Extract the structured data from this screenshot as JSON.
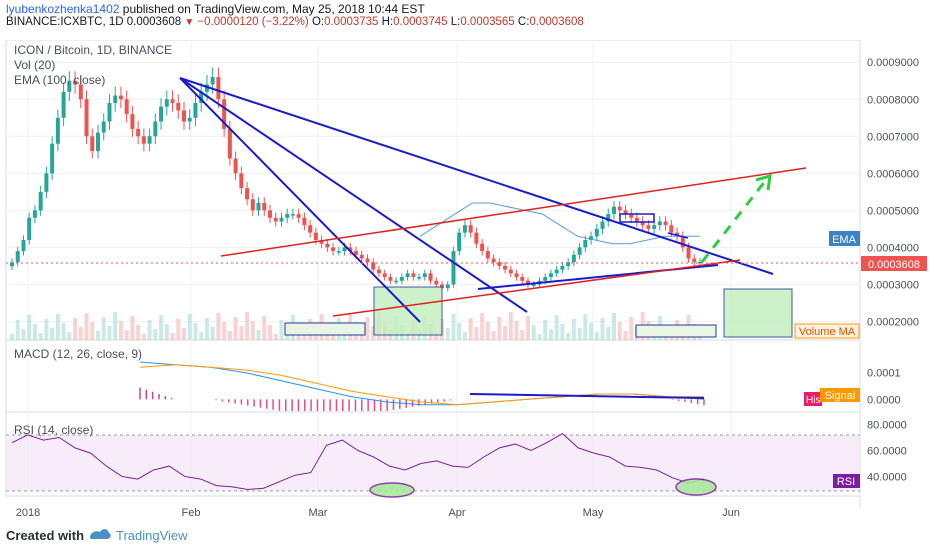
{
  "header": {
    "author": "lyubenkozhenka1402",
    "published_text": "published on TradingView.com, May 25, 2018 10:44 EST",
    "symbol": "BINANCE:ICXBTC, 1D",
    "last": "0.0003608",
    "change": "−0.0000120 (−3.22%)",
    "o_label": "O:",
    "o_value": "0.0003735",
    "h_label": "H:",
    "h_value": "0.0003745",
    "l_label": "L:",
    "l_value": "0.0003565",
    "c_label": "C:",
    "c_value": "0.0003608"
  },
  "legend": {
    "title": "ICON / Bitcoin, 1D, BINANCE",
    "vol": "Vol (20)",
    "ema": "EMA (100, close)",
    "macd": "MACD (12, 26, close, 9)",
    "rsi": "RSI (14, close)"
  },
  "price_badges": {
    "ema": "EMA",
    "last": "0.0003608",
    "volume_ma": "Volume MA"
  },
  "macd_badges": {
    "histogram": "His",
    "signal": "Signal"
  },
  "rsi_badge": "RSI",
  "footer": {
    "created_with": "Created with",
    "brand": "TradingView"
  },
  "colors": {
    "up": "#26a69a",
    "down": "#ef5350",
    "trend_blue": "#1a1ccc",
    "channel_red": "#e02020",
    "ema": "#5b9bd5",
    "macd": "#2196f3",
    "signal": "#ff9800",
    "rsi": "#7b1fa2",
    "projection": "#2ecc40"
  },
  "chart_data": [
    {
      "type": "candlestick",
      "title": "ICON / Bitcoin, 1D, BINANCE",
      "x_ticks": [
        "2018",
        "Feb",
        "Mar",
        "Apr",
        "May",
        "Jun"
      ],
      "y_ticks": [
        "0.0009000",
        "0.0008000",
        "0.0007000",
        "0.0006000",
        "0.0005000",
        "0.0004000",
        "0.0003000",
        "0.0002000"
      ],
      "ylim": [
        0.00015,
        0.00096
      ],
      "last_price": 0.0003608,
      "close_series": [
        0.00036,
        0.00039,
        0.00042,
        0.00048,
        0.0005,
        0.00055,
        0.0006,
        0.00068,
        0.00075,
        0.00082,
        0.00085,
        0.00084,
        0.0008,
        0.0007,
        0.00066,
        0.00071,
        0.00074,
        0.00079,
        0.00081,
        0.0008,
        0.00076,
        0.00072,
        0.0007,
        0.00068,
        0.0007,
        0.00074,
        0.00078,
        0.0008,
        0.00079,
        0.00077,
        0.00074,
        0.00075,
        0.00079,
        0.00082,
        0.00084,
        0.00086,
        0.0008,
        0.00072,
        0.00064,
        0.0006,
        0.00056,
        0.00053,
        0.0005,
        0.00052,
        0.0005,
        0.00048,
        0.00047,
        0.00048,
        0.00049,
        0.00049,
        0.00048,
        0.00046,
        0.00044,
        0.00042,
        0.00041,
        0.0004,
        0.00039,
        0.00039,
        0.0004,
        0.00039,
        0.00038,
        0.00037,
        0.00036,
        0.00034,
        0.00033,
        0.00032,
        0.00031,
        0.00031,
        0.00032,
        0.00033,
        0.00032,
        0.00032,
        0.00033,
        0.00031,
        0.0003,
        0.00029,
        0.0003,
        0.00039,
        0.00044,
        0.00046,
        0.00044,
        0.00041,
        0.00039,
        0.00037,
        0.00036,
        0.00035,
        0.00034,
        0.00033,
        0.00032,
        0.00031,
        0.0003,
        0.0003,
        0.00031,
        0.00032,
        0.00033,
        0.00034,
        0.00035,
        0.00036,
        0.00038,
        0.0004,
        0.00042,
        0.00043,
        0.00045,
        0.00047,
        0.00049,
        0.00051,
        0.0005,
        0.00049,
        0.00048,
        0.00047,
        0.00046,
        0.00045,
        0.00046,
        0.00047,
        0.00046,
        0.00044,
        0.00043,
        0.0004,
        0.00037,
        0.00036,
        0.000361
      ],
      "ema_series": [
        0.00043,
        0.00046,
        0.00049,
        0.00052,
        0.00052,
        0.00051,
        0.0005,
        0.00049,
        0.00046,
        0.00043,
        0.00042,
        0.00041,
        0.00041,
        0.00042,
        0.00043,
        0.00043,
        0.00043
      ],
      "volume_ma_label": "Volume MA"
    },
    {
      "type": "line",
      "title": "MACD (12, 26, close, 9)",
      "y_ticks": [
        "0.0001",
        "0.0000"
      ],
      "ylim": [
        -4e-05,
        0.00014
      ],
      "series": [
        {
          "name": "MACD",
          "values": [
            0.00014,
            0.00013,
            0.00012,
            0.0001,
            7e-05,
            4e-05,
            1e-05,
            -1e-05,
            -2e-05,
            -2e-05,
            -1e-05,
            0.0,
            1e-05,
            2e-05,
            2e-05,
            1e-05,
            0.0
          ]
        },
        {
          "name": "Signal",
          "values": [
            0.00012,
            0.00013,
            0.00012,
            0.00011,
            9e-05,
            6e-05,
            3e-05,
            1e-05,
            -1e-05,
            -2e-05,
            -1e-05,
            0.0,
            1e-05,
            2e-05,
            2e-05,
            1e-05,
            1e-05
          ]
        }
      ]
    },
    {
      "type": "line",
      "title": "RSI (14, close)",
      "y_ticks": [
        "80.0000",
        "60.0000",
        "40.0000"
      ],
      "ylim": [
        25,
        85
      ],
      "series": [
        {
          "name": "RSI",
          "values": [
            66,
            72,
            68,
            70,
            62,
            58,
            48,
            40,
            38,
            45,
            48,
            40,
            38,
            33,
            32,
            30,
            31,
            36,
            41,
            43,
            64,
            68,
            60,
            55,
            48,
            45,
            50,
            52,
            48,
            47,
            55,
            62,
            65,
            60,
            66,
            73,
            62,
            58,
            55,
            48,
            47,
            45,
            39,
            35,
            38
          ]
        }
      ]
    }
  ]
}
